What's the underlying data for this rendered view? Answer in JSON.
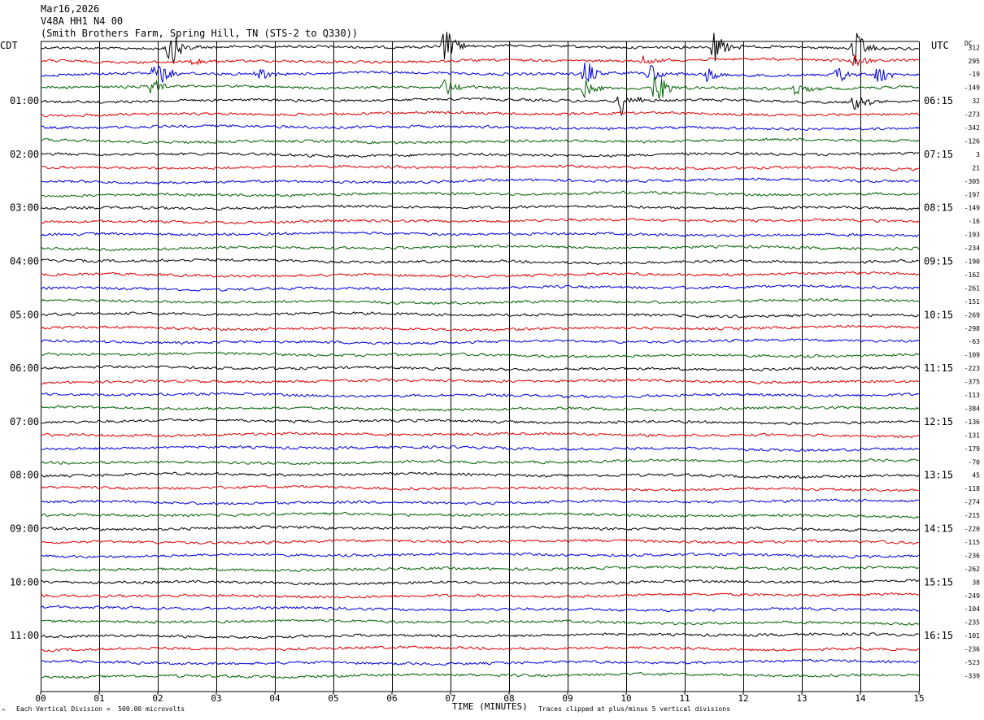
{
  "header": {
    "date": "Mar16,2026",
    "station": "V48A HH1 N4 00",
    "site": "(Smith Brothers Farm, Spring Hill, TN (STS-2 to Q330))"
  },
  "left_zone_label": "CDT",
  "right_zone_label": "UTC",
  "dc_label": "DC",
  "footer": {
    "corner_mark": "^",
    "scale_note": "Each Vertical Division =  500.00 microvolts",
    "clip_note": "Traces clipped at plus/minus 5 vertical divisions"
  },
  "chart_data": {
    "type": "line",
    "title": "Mar16,2026",
    "xlabel": "TIME (MINUTES)",
    "xlim": [
      0,
      15
    ],
    "x_ticks": [
      "00",
      "01",
      "02",
      "03",
      "04",
      "05",
      "06",
      "07",
      "08",
      "09",
      "10",
      "11",
      "12",
      "13",
      "14",
      "15"
    ],
    "trace_colors": [
      "#000000",
      "#e00000",
      "#0000e0",
      "#006400"
    ],
    "trace_count": 48,
    "left_hour_labels": [
      "01:00",
      "02:00",
      "03:00",
      "04:00",
      "05:00",
      "06:00",
      "07:00",
      "08:00",
      "09:00",
      "10:00",
      "11:00"
    ],
    "right_hour_labels": [
      "06:15",
      "07:15",
      "08:15",
      "09:15",
      "10:15",
      "11:15",
      "12:15",
      "13:15",
      "14:15",
      "15:15",
      "16:15"
    ],
    "dc_offsets": [
      "312",
      "295",
      "-19",
      "-149",
      "32",
      "-273",
      "-342",
      "-126",
      "3",
      "21",
      "-305",
      "-197",
      "-149",
      "-16",
      "-193",
      "-234",
      "-190",
      "-162",
      "-261",
      "-151",
      "-269",
      "-298",
      "-63",
      "-109",
      "-223",
      "-375",
      "-113",
      "-384",
      "-136",
      "-131",
      "-179",
      "-70",
      "45",
      "-118",
      "-274",
      "-215",
      "-220",
      "-115",
      "-236",
      "-262",
      "38",
      "-249",
      "-104",
      "-235",
      "-101",
      "-236",
      "-523",
      "-339"
    ],
    "events": [
      {
        "trace": 0,
        "minute": 2.2,
        "amp": 1.0
      },
      {
        "trace": 0,
        "minute": 6.9,
        "amp": 1.0
      },
      {
        "trace": 0,
        "minute": 11.5,
        "amp": 0.9
      },
      {
        "trace": 0,
        "minute": 13.9,
        "amp": 1.0
      },
      {
        "trace": 1,
        "minute": 2.6,
        "amp": 0.35
      },
      {
        "trace": 1,
        "minute": 10.3,
        "amp": 0.3
      },
      {
        "trace": 1,
        "minute": 13.9,
        "amp": 0.35
      },
      {
        "trace": 2,
        "minute": 1.95,
        "amp": 1.0
      },
      {
        "trace": 2,
        "minute": 3.7,
        "amp": 0.4
      },
      {
        "trace": 2,
        "minute": 9.3,
        "amp": 0.7
      },
      {
        "trace": 2,
        "minute": 10.4,
        "amp": 0.6
      },
      {
        "trace": 2,
        "minute": 11.4,
        "amp": 0.4
      },
      {
        "trace": 2,
        "minute": 13.6,
        "amp": 0.5
      },
      {
        "trace": 2,
        "minute": 14.3,
        "amp": 0.5
      },
      {
        "trace": 3,
        "minute": 1.9,
        "amp": 0.45
      },
      {
        "trace": 3,
        "minute": 6.9,
        "amp": 0.5
      },
      {
        "trace": 3,
        "minute": 9.3,
        "amp": 0.6
      },
      {
        "trace": 3,
        "minute": 10.5,
        "amp": 0.9
      },
      {
        "trace": 3,
        "minute": 12.9,
        "amp": 0.4
      },
      {
        "trace": 4,
        "minute": 9.9,
        "amp": 0.8
      },
      {
        "trace": 4,
        "minute": 13.9,
        "amp": 0.5
      }
    ]
  }
}
